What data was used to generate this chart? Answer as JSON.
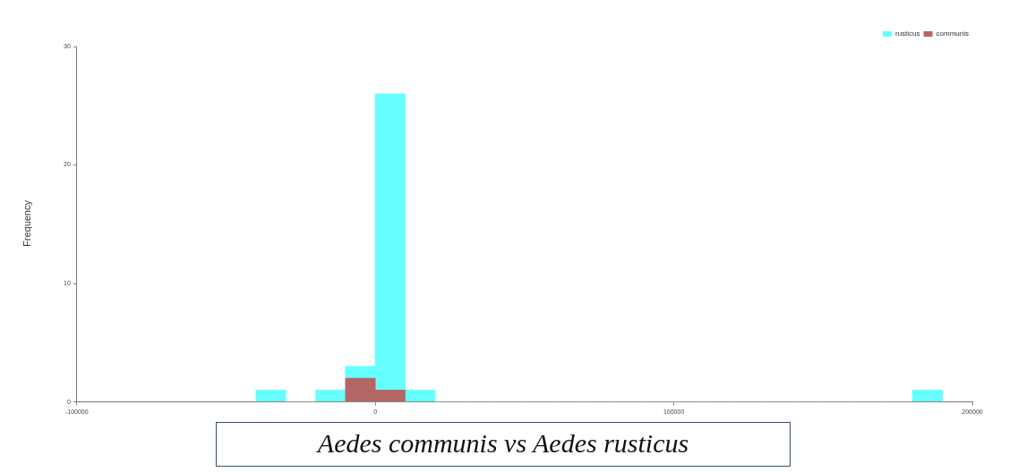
{
  "chart_data": {
    "type": "histogram",
    "title": "Aedes communis vs Aedes rusticus",
    "ylabel": "Frequency",
    "bins": [
      -40000,
      -30000,
      -20000,
      -10000,
      0,
      10000,
      20000,
      30000,
      40000,
      50000,
      60000,
      70000,
      80000,
      90000,
      100000,
      110000,
      120000,
      130000,
      140000,
      150000,
      160000,
      170000,
      180000,
      190000
    ],
    "series": [
      {
        "name": "rusticus",
        "color": "#66ffff",
        "values": [
          1,
          0,
          1,
          3,
          26,
          1,
          0,
          0,
          0,
          0,
          0,
          0,
          0,
          0,
          0,
          0,
          0,
          0,
          0,
          0,
          0,
          0,
          1
        ]
      },
      {
        "name": "communis",
        "color": "#b46666",
        "values": [
          0,
          0,
          0,
          2,
          1,
          0,
          0,
          0,
          0,
          0,
          0,
          0,
          0,
          0,
          0,
          0,
          0,
          0,
          0,
          0,
          0,
          0,
          0
        ]
      }
    ],
    "xlim": [
      -100000,
      200000
    ],
    "xticks": [
      -100000,
      0,
      100000,
      200000
    ],
    "ylim": [
      0,
      30
    ],
    "yticks": [
      0,
      10,
      20,
      30
    ],
    "grid": false,
    "legend": "top right"
  }
}
